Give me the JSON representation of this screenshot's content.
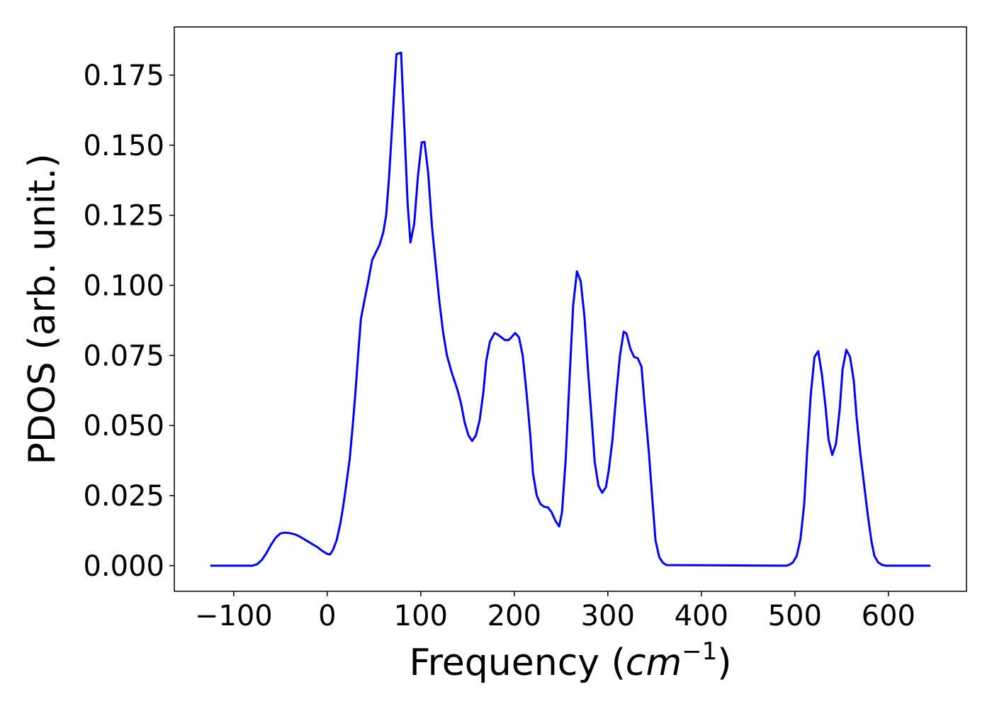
{
  "chart_data": {
    "type": "line",
    "x_label": [
      "Frequency (",
      "cm",
      "−1",
      ")"
    ],
    "y_label": "PDOS (arb. unit.)",
    "x": [
      -125,
      -80,
      -75,
      -70,
      -65,
      -60,
      -55,
      -50,
      -45,
      -40,
      -35,
      -30,
      -25,
      -20,
      -15,
      -10,
      -5,
      0,
      3,
      6,
      10,
      14,
      17,
      20,
      24,
      27,
      30,
      33,
      36,
      40,
      44,
      48,
      56,
      60,
      63,
      66,
      70,
      74,
      79,
      82,
      86,
      89,
      93,
      97,
      101,
      104,
      108,
      112,
      117,
      120,
      124,
      128,
      133,
      139,
      143,
      147,
      151,
      155,
      159,
      163,
      167,
      170,
      174,
      179,
      182,
      186,
      190,
      194,
      197,
      201,
      205,
      209,
      213,
      217,
      220,
      224,
      228,
      232,
      236,
      240,
      244,
      248,
      251,
      255,
      259,
      263,
      267,
      271,
      275,
      279,
      283,
      286,
      290,
      294,
      298,
      301,
      305,
      309,
      313,
      317,
      320,
      324,
      328,
      332,
      336,
      339,
      344,
      348,
      351,
      355,
      359,
      363,
      491,
      494,
      498,
      502,
      506,
      510,
      513,
      517,
      521,
      525,
      529,
      533,
      536,
      540,
      544,
      548,
      551,
      555,
      559,
      563,
      566,
      570,
      574,
      578,
      582,
      585,
      589,
      593,
      597,
      645
    ],
    "series": [
      {
        "color": "#0000ff",
        "values": [
          0,
          0,
          0.0005,
          0.002,
          0.0045,
          0.0075,
          0.01,
          0.0115,
          0.0118,
          0.0116,
          0.0112,
          0.0105,
          0.0095,
          0.0085,
          0.0075,
          0.0065,
          0.0052,
          0.0042,
          0.004,
          0.0055,
          0.009,
          0.015,
          0.021,
          0.028,
          0.038,
          0.049,
          0.061,
          0.075,
          0.088,
          0.095,
          0.1017,
          0.109,
          0.1145,
          0.119,
          0.125,
          0.138,
          0.16,
          0.1825,
          0.183,
          0.16,
          0.129,
          0.1153,
          0.122,
          0.139,
          0.151,
          0.1512,
          0.14,
          0.121,
          0.104,
          0.094,
          0.083,
          0.075,
          0.069,
          0.063,
          0.058,
          0.051,
          0.0465,
          0.0445,
          0.0465,
          0.052,
          0.062,
          0.073,
          0.08,
          0.083,
          0.0825,
          0.0815,
          0.0805,
          0.0805,
          0.0815,
          0.083,
          0.0815,
          0.075,
          0.062,
          0.047,
          0.033,
          0.025,
          0.022,
          0.021,
          0.0208,
          0.019,
          0.016,
          0.014,
          0.019,
          0.038,
          0.066,
          0.093,
          0.105,
          0.1015,
          0.089,
          0.069,
          0.051,
          0.037,
          0.0285,
          0.026,
          0.028,
          0.034,
          0.045,
          0.061,
          0.075,
          0.0835,
          0.0828,
          0.0775,
          0.0745,
          0.074,
          0.071,
          0.059,
          0.04,
          0.022,
          0.009,
          0.003,
          0.001,
          0.0002,
          0,
          0.0003,
          0.0012,
          0.0035,
          0.0095,
          0.022,
          0.04,
          0.061,
          0.0745,
          0.0765,
          0.068,
          0.056,
          0.045,
          0.0395,
          0.0435,
          0.056,
          0.07,
          0.077,
          0.0745,
          0.066,
          0.053,
          0.04,
          0.029,
          0.018,
          0.0085,
          0.0035,
          0.0012,
          0.0003,
          0,
          0
        ]
      }
    ],
    "xlim": [
      -163.5,
      683.5
    ],
    "ylim": [
      -0.00915,
      0.1922
    ],
    "xticks": [
      {
        "value": -100,
        "label": "−100"
      },
      0,
      100,
      200,
      300,
      400,
      500,
      600
    ],
    "yticks": [
      {
        "value": 0,
        "label": "0.000"
      },
      {
        "value": 0.025,
        "label": "0.025"
      },
      {
        "value": 0.05,
        "label": "0.050"
      },
      {
        "value": 0.075,
        "label": "0.075"
      },
      {
        "value": 0.1,
        "label": "0.100"
      },
      {
        "value": 0.125,
        "label": "0.125"
      },
      {
        "value": 0.15,
        "label": "0.150"
      },
      {
        "value": 0.175,
        "label": "0.175"
      }
    ],
    "grid": false
  }
}
